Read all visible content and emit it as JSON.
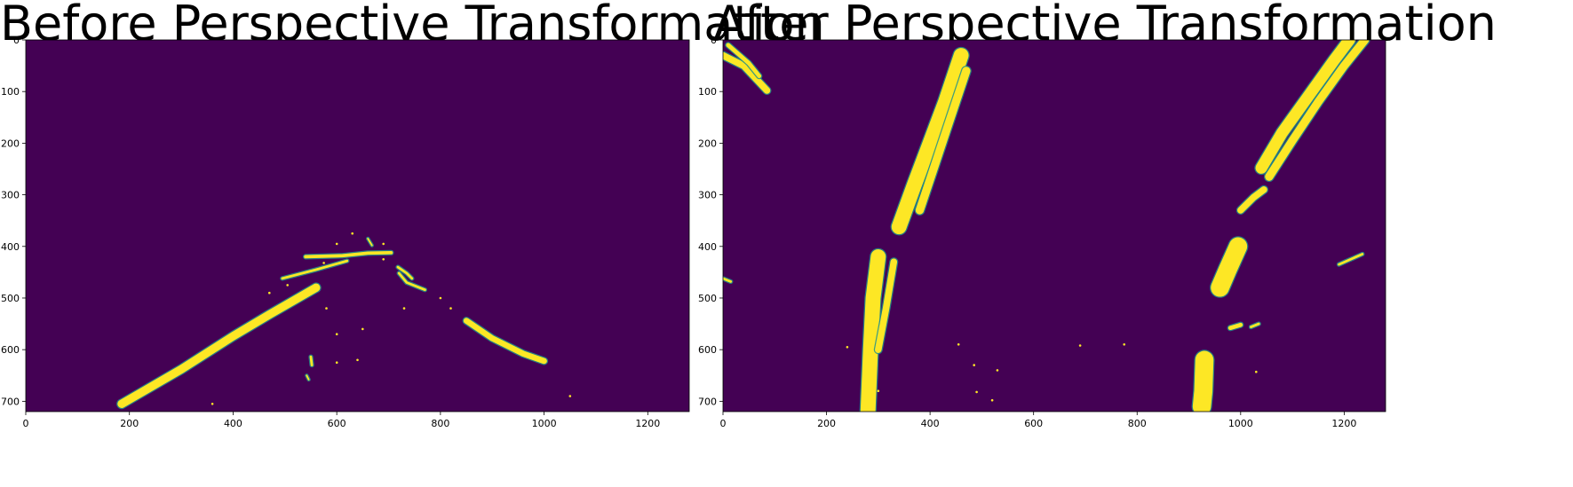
{
  "chart_data": [
    {
      "type": "heatmap",
      "title": "Before Perspective Transformation",
      "xlim": [
        0,
        1280
      ],
      "ylim": [
        720,
        0
      ],
      "xticks": [
        0,
        200,
        400,
        600,
        800,
        1000,
        1200
      ],
      "yticks": [
        0,
        100,
        200,
        300,
        400,
        500,
        600,
        700
      ],
      "grid": false,
      "colormap": "viridis",
      "colors": {
        "background": "#440154",
        "foreground": "#fde725",
        "edge": "#21918c"
      },
      "strokes": [
        {
          "label": "left lane line",
          "points": [
            [
              185,
              705
            ],
            [
              300,
              638
            ],
            [
              400,
              574
            ],
            [
              470,
              532
            ],
            [
              560,
              480
            ]
          ],
          "width": 10
        },
        {
          "label": "left lane upper segment",
          "points": [
            [
              495,
              462
            ],
            [
              560,
              445
            ],
            [
              620,
              428
            ]
          ],
          "width": 3
        },
        {
          "label": "horizon segment",
          "points": [
            [
              540,
              420
            ],
            [
              610,
              418
            ],
            [
              660,
              413
            ],
            [
              705,
              412
            ]
          ],
          "width": 4
        },
        {
          "label": "right lane line",
          "points": [
            [
              850,
              544
            ],
            [
              900,
              578
            ],
            [
              960,
              608
            ],
            [
              1000,
              622
            ]
          ],
          "width": 7
        },
        {
          "label": "right lane upper segment",
          "points": [
            [
              720,
              452
            ],
            [
              735,
              470
            ],
            [
              770,
              484
            ]
          ],
          "width": 3
        },
        {
          "label": "curved mark",
          "points": [
            [
              718,
              440
            ],
            [
              735,
              452
            ],
            [
              745,
              462
            ]
          ],
          "width": 3
        },
        {
          "label": "small mark 1",
          "points": [
            [
              550,
              614
            ],
            [
              552,
              630
            ]
          ],
          "width": 3
        },
        {
          "label": "small mark 2",
          "points": [
            [
              542,
              650
            ],
            [
              546,
              658
            ]
          ],
          "width": 2
        },
        {
          "label": "small mark 3",
          "points": [
            [
              660,
              385
            ],
            [
              668,
              398
            ]
          ],
          "width": 2
        }
      ],
      "dots": [
        [
          630,
          375
        ],
        [
          600,
          395
        ],
        [
          690,
          395
        ],
        [
          580,
          520
        ],
        [
          600,
          570
        ],
        [
          650,
          560
        ],
        [
          730,
          520
        ],
        [
          800,
          500
        ],
        [
          640,
          620
        ],
        [
          600,
          625
        ],
        [
          1050,
          690
        ],
        [
          360,
          705
        ],
        [
          820,
          520
        ],
        [
          575,
          432
        ],
        [
          690,
          425
        ],
        [
          505,
          475
        ],
        [
          470,
          490
        ]
      ]
    },
    {
      "type": "heatmap",
      "title": "After Perspective Transformation",
      "xlim": [
        0,
        1280
      ],
      "ylim": [
        720,
        0
      ],
      "xticks": [
        0,
        200,
        400,
        600,
        800,
        1000,
        1200
      ],
      "yticks": [
        0,
        100,
        200,
        300,
        400,
        500,
        600,
        700
      ],
      "grid": false,
      "colormap": "viridis",
      "colors": {
        "background": "#440154",
        "foreground": "#fde725",
        "edge": "#21918c"
      },
      "strokes": [
        {
          "label": "top-left streak",
          "points": [
            [
              0,
              30
            ],
            [
              40,
              50
            ],
            [
              85,
              98
            ]
          ],
          "width": 8
        },
        {
          "label": "top-left streak 2",
          "points": [
            [
              10,
              10
            ],
            [
              50,
              45
            ],
            [
              70,
              70
            ]
          ],
          "width": 5
        },
        {
          "label": "left lane warped",
          "points": [
            [
              340,
              362
            ],
            [
              370,
              280
            ],
            [
              400,
              200
            ],
            [
              430,
              120
            ],
            [
              460,
              30
            ]
          ],
          "width": 18
        },
        {
          "label": "left lane warped 2",
          "points": [
            [
              380,
              330
            ],
            [
              410,
              240
            ],
            [
              440,
              150
            ],
            [
              470,
              60
            ]
          ],
          "width": 10
        },
        {
          "label": "right lane warped",
          "points": [
            [
              1040,
              248
            ],
            [
              1080,
              180
            ],
            [
              1130,
              110
            ],
            [
              1180,
              40
            ],
            [
              1210,
              0
            ]
          ],
          "width": 14
        },
        {
          "label": "right lane warped 2",
          "points": [
            [
              1055,
              265
            ],
            [
              1100,
              195
            ],
            [
              1150,
              120
            ],
            [
              1200,
              50
            ],
            [
              1240,
              0
            ]
          ],
          "width": 10
        },
        {
          "label": "right lane middle",
          "points": [
            [
              1000,
              330
            ],
            [
              1025,
              305
            ],
            [
              1045,
              290
            ]
          ],
          "width": 8
        },
        {
          "label": "right lane lower",
          "points": [
            [
              960,
              480
            ],
            [
              975,
              445
            ],
            [
              995,
              400
            ]
          ],
          "width": 22
        },
        {
          "label": "left lane lower",
          "points": [
            [
              300,
              420
            ],
            [
              290,
              500
            ],
            [
              285,
              600
            ],
            [
              280,
              720
            ]
          ],
          "width": 18
        },
        {
          "label": "left lane lower edge",
          "points": [
            [
              330,
              430
            ],
            [
              315,
              520
            ],
            [
              300,
              600
            ]
          ],
          "width": 8
        },
        {
          "label": "right lane bottom",
          "points": [
            [
              930,
              620
            ],
            [
              928,
              680
            ],
            [
              925,
              710
            ]
          ],
          "width": 22
        },
        {
          "label": "right side streak",
          "points": [
            [
              1190,
              435
            ],
            [
              1235,
              415
            ]
          ],
          "width": 3
        },
        {
          "label": "mid bottom streak",
          "points": [
            [
              980,
              558
            ],
            [
              1000,
              552
            ]
          ],
          "width": 5
        },
        {
          "label": "mid streak 2",
          "points": [
            [
              1020,
              556
            ],
            [
              1035,
              550
            ]
          ],
          "width": 3
        },
        {
          "label": "left edge small",
          "points": [
            [
              0,
              462
            ],
            [
              15,
              468
            ]
          ],
          "width": 3
        }
      ],
      "dots": [
        [
          490,
          682
        ],
        [
          520,
          698
        ],
        [
          485,
          630
        ],
        [
          530,
          640
        ],
        [
          455,
          590
        ],
        [
          690,
          592
        ],
        [
          775,
          590
        ],
        [
          1030,
          643
        ],
        [
          240,
          595
        ],
        [
          300,
          680
        ]
      ]
    }
  ]
}
